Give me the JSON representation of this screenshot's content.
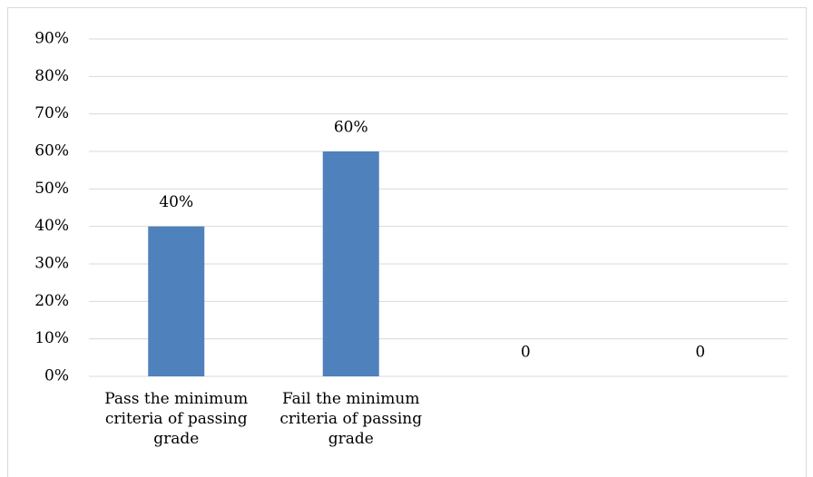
{
  "chart_data": {
    "type": "bar",
    "categories": [
      "Pass the minimum criteria of passing grade",
      "Fail the minimum criteria of passing grade",
      null,
      null
    ],
    "values": [
      40,
      60,
      0,
      0
    ],
    "value_labels": [
      "40%",
      "60%",
      "0",
      "0"
    ],
    "color": "#4f81bd",
    "ylim": [
      0,
      90
    ],
    "yticks": [
      {
        "value": 0,
        "label": "0%"
      },
      {
        "value": 10,
        "label": "10%"
      },
      {
        "value": 20,
        "label": "20%"
      },
      {
        "value": 30,
        "label": "30%"
      },
      {
        "value": 40,
        "label": "40%"
      },
      {
        "value": 50,
        "label": "50%"
      },
      {
        "value": 60,
        "label": "60%"
      },
      {
        "value": 70,
        "label": "70%"
      },
      {
        "value": 80,
        "label": "80%"
      },
      {
        "value": 90,
        "label": "90%"
      }
    ],
    "grid": true
  }
}
